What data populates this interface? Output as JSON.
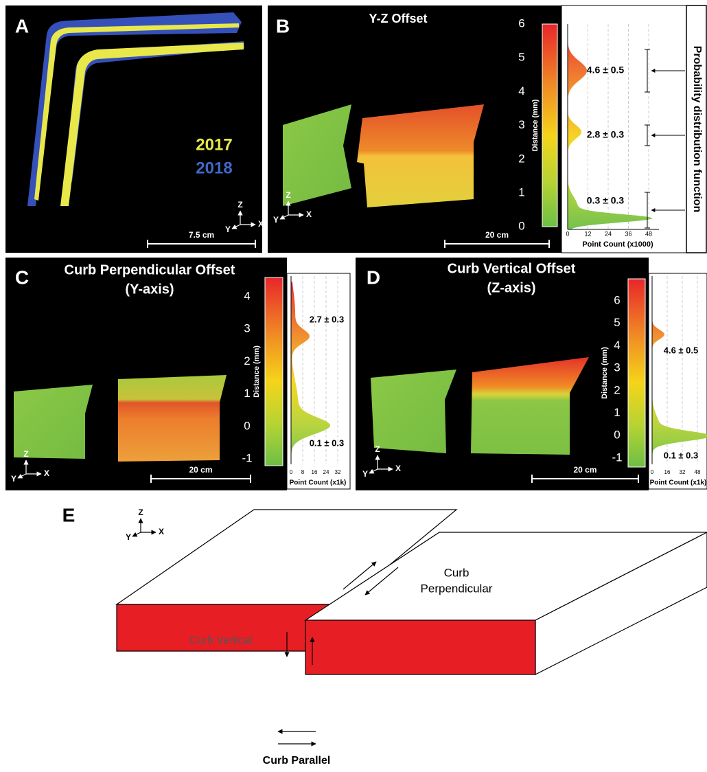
{
  "panels": {
    "a": {
      "label": "A",
      "legend": [
        "2017",
        "2018"
      ],
      "scale_bar": "7.5 cm",
      "axes": {
        "z": "Z",
        "y": "Y",
        "x": "X"
      }
    },
    "b": {
      "label": "B",
      "title": "Y-Z Offset",
      "colorbar_label": "Distance (mm)",
      "colorbar_ticks": [
        6,
        5,
        4,
        3,
        2,
        1,
        0
      ],
      "count_ticks": [
        0,
        12,
        24,
        36,
        48
      ],
      "count_label": "Point Count (x1000)",
      "peaks": [
        "4.6 ± 0.5",
        "2.8 ± 0.3",
        "0.3 ± 0.3"
      ],
      "scale_bar": "20 cm",
      "axes": {
        "z": "Z",
        "y": "Y",
        "x": "X"
      },
      "side_label": "Probability distribution function"
    },
    "c": {
      "label": "C",
      "title": [
        "Curb Perpendicular Offset",
        "(Y-axis)"
      ],
      "colorbar_label": "Distance (mm)",
      "colorbar_ticks": [
        4,
        3,
        2,
        1,
        0,
        -1
      ],
      "count_ticks": [
        0,
        8,
        16,
        24,
        32
      ],
      "count_label": "Point Count (x1k)",
      "peaks": [
        "2.7 ± 0.3",
        "0.1 ± 0.3"
      ],
      "scale_bar": "20 cm",
      "axes": {
        "z": "Z",
        "y": "Y",
        "x": "X"
      }
    },
    "d": {
      "label": "D",
      "title": [
        "Curb Vertical Offset",
        "(Z-axis)"
      ],
      "colorbar_label": "Distance (mm)",
      "colorbar_ticks": [
        6,
        5,
        4,
        3,
        2,
        1,
        0,
        -1
      ],
      "count_ticks": [
        0,
        16,
        32,
        48
      ],
      "count_label": "Point Count (x1k)",
      "peaks": [
        "4.6 ± 0.5",
        "0.1 ± 0.3"
      ],
      "scale_bar": "20 cm",
      "axes": {
        "z": "Z",
        "y": "Y",
        "x": "X"
      }
    },
    "e": {
      "label": "E",
      "axes": {
        "z": "Z",
        "y": "Y",
        "x": "X"
      },
      "labels": {
        "perpendicular": [
          "Curb",
          "Perpendicular"
        ],
        "vertical": "Curb Vertical",
        "parallel": "Curb Parallel"
      }
    }
  }
}
